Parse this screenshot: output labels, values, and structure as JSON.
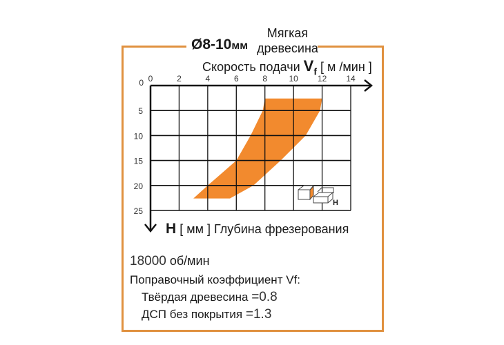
{
  "header": {
    "diameter": "Ø8-10",
    "diameter_unit": "мм",
    "material_line1": "Мягкая",
    "material_line2": "древесина"
  },
  "footer": {
    "rpm_value": "18000",
    "rpm_unit": "об/мин",
    "correction_label": "Поправочный коэффициент Vf:",
    "hardwood_label": "Твёрдая древесина",
    "hardwood_value": "=0.8",
    "chipboard_label": "ДСП без покрытия",
    "chipboard_value": "=1.3"
  },
  "chart_data": {
    "type": "area",
    "title": "Ø8-10мм Мягкая древесина",
    "xlabel": {
      "prefix": "Скорость подачи",
      "symbol": "V",
      "subscript": "f",
      "unit": "[ м /мин ]"
    },
    "ylabel": {
      "symbol": "H",
      "unit": "[ мм ]",
      "text": "Глубина фрезерования"
    },
    "x_ticks": [
      "0",
      "2",
      "4",
      "6",
      "8",
      "10",
      "12",
      "14"
    ],
    "y_ticks": [
      "0",
      "5",
      "10",
      "15",
      "20",
      "25"
    ],
    "xlim": [
      0,
      14
    ],
    "ylim": [
      0,
      25
    ],
    "y_inverted": true,
    "grid": true,
    "fill_color": "#f28a2e",
    "frame_color": "#e0913f",
    "inset_label": "H",
    "region": {
      "left_boundary": [
        [
          8.0,
          2.6
        ],
        [
          7.85,
          5
        ],
        [
          7.0,
          10
        ],
        [
          6.0,
          15
        ],
        [
          4.0,
          20
        ],
        [
          3.0,
          22.6
        ]
      ],
      "right_boundary": [
        [
          12.0,
          2.6
        ],
        [
          11.85,
          5
        ],
        [
          10.85,
          10
        ],
        [
          9.1,
          15
        ],
        [
          7.2,
          20
        ],
        [
          5.55,
          22.6
        ]
      ]
    }
  }
}
